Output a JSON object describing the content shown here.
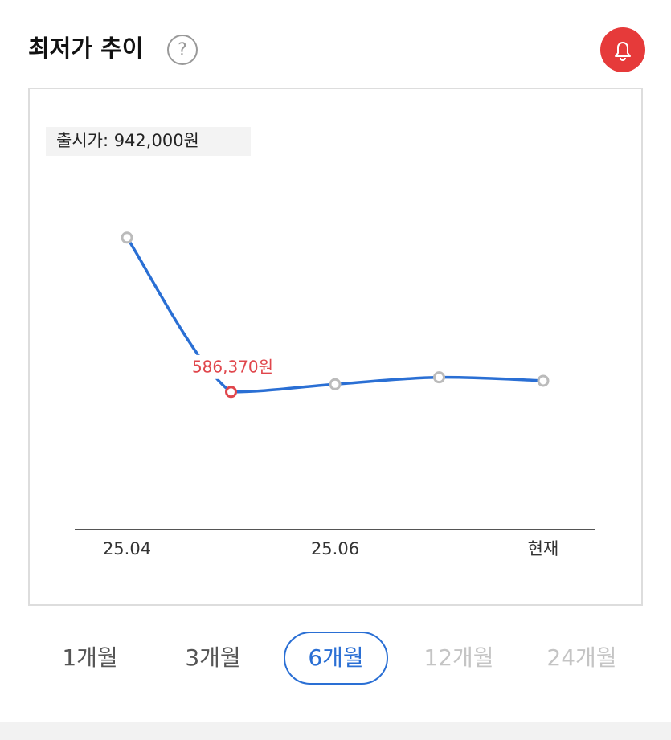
{
  "header": {
    "title": "최저가 추이",
    "help": "?"
  },
  "chart_data": {
    "type": "line",
    "annotation": "출시가: 942,000원",
    "categories": [
      "25.04",
      null,
      "25.06",
      null,
      "현재"
    ],
    "series": [
      {
        "color": "#2a6fd4",
        "values": [
          720000,
          586370,
          593000,
          599000,
          596000
        ],
        "value_labels": [
          null,
          "586,370원",
          null,
          null,
          null
        ]
      }
    ],
    "ylim": [
      470000,
      850000
    ],
    "point_color": "#bbbbbb",
    "min_color": "#e0464c"
  },
  "tabs": {
    "items": [
      "1개월",
      "3개월",
      "6개월",
      "12개월",
      "24개월"
    ],
    "selected": "6개월"
  }
}
